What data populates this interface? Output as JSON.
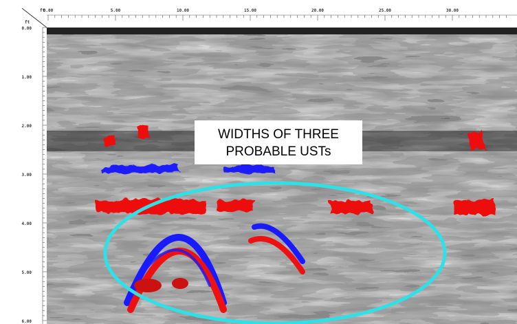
{
  "x_axis": {
    "unit": "ft",
    "ticks": [
      "0.00",
      "5.00",
      "10.00",
      "15.00",
      "20.00",
      "25.00",
      "30.00"
    ]
  },
  "y_axis": {
    "unit": "ft",
    "ticks": [
      "0.00",
      "1.00",
      "2.00",
      "3.00",
      "4.00",
      "5.00",
      "6.00"
    ]
  },
  "annotation": {
    "lines": [
      "WIDTHS OF THREE",
      "PROBABLE USTs"
    ]
  }
}
